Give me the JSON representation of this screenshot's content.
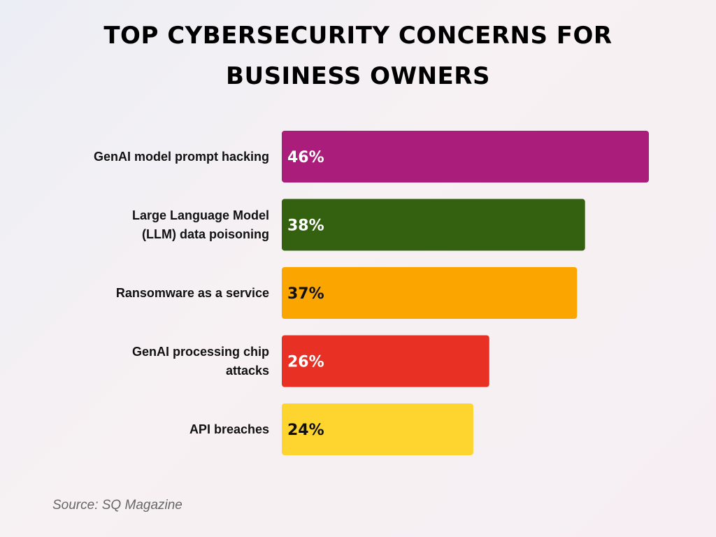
{
  "chart_data": {
    "type": "bar",
    "orientation": "horizontal",
    "title_lines": [
      "TOP CYBERSECURITY CONCERNS FOR",
      "BUSINESS OWNERS"
    ],
    "categories": [
      [
        "GenAI model prompt hacking"
      ],
      [
        "Large Language Model",
        "(LLM) data poisoning"
      ],
      [
        "Ransomware as a service"
      ],
      [
        "GenAI processing chip",
        "attacks"
      ],
      [
        "API breaches"
      ]
    ],
    "values": [
      46,
      38,
      37,
      26,
      24
    ],
    "value_labels": [
      "46%",
      "38%",
      "37%",
      "26%",
      "24%"
    ],
    "unit": "%",
    "bar_colors": [
      "#ab1d7a",
      "#33610f",
      "#fba500",
      "#e93024",
      "#fed42e"
    ],
    "value_label_colors": [
      "#ffffff",
      "#ffffff",
      "#111111",
      "#ffffff",
      "#111111"
    ],
    "xlim": [
      0,
      46
    ],
    "grid": false,
    "legend": "none"
  },
  "source": "Source: SQ Magazine"
}
